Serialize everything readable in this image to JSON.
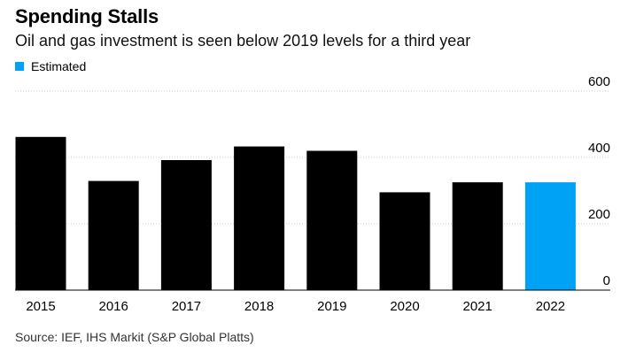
{
  "chart_data": {
    "type": "bar",
    "title": "Spending Stalls",
    "subtitle": "Oil and gas investment is seen below 2019 levels for a third year",
    "categories": [
      "2015",
      "2016",
      "2017",
      "2018",
      "2019",
      "2020",
      "2021",
      "2022"
    ],
    "values": [
      462,
      329,
      392,
      433,
      420,
      295,
      325,
      325
    ],
    "estimated": [
      false,
      false,
      false,
      false,
      false,
      false,
      false,
      true
    ],
    "legend": [
      {
        "label": "Estimated",
        "color": "#00a2f5"
      }
    ],
    "xlabel": "",
    "ylabel": "",
    "ylim": [
      0,
      600
    ],
    "yticks": [
      "600",
      "400",
      "200",
      "0"
    ],
    "y_axis_side": "right",
    "colors": {
      "actual": "#000000",
      "estimated": "#00a2f5",
      "gridline": "#cccccc"
    },
    "source": "Source: IEF, IHS Markit (S&P Global Platts)"
  }
}
